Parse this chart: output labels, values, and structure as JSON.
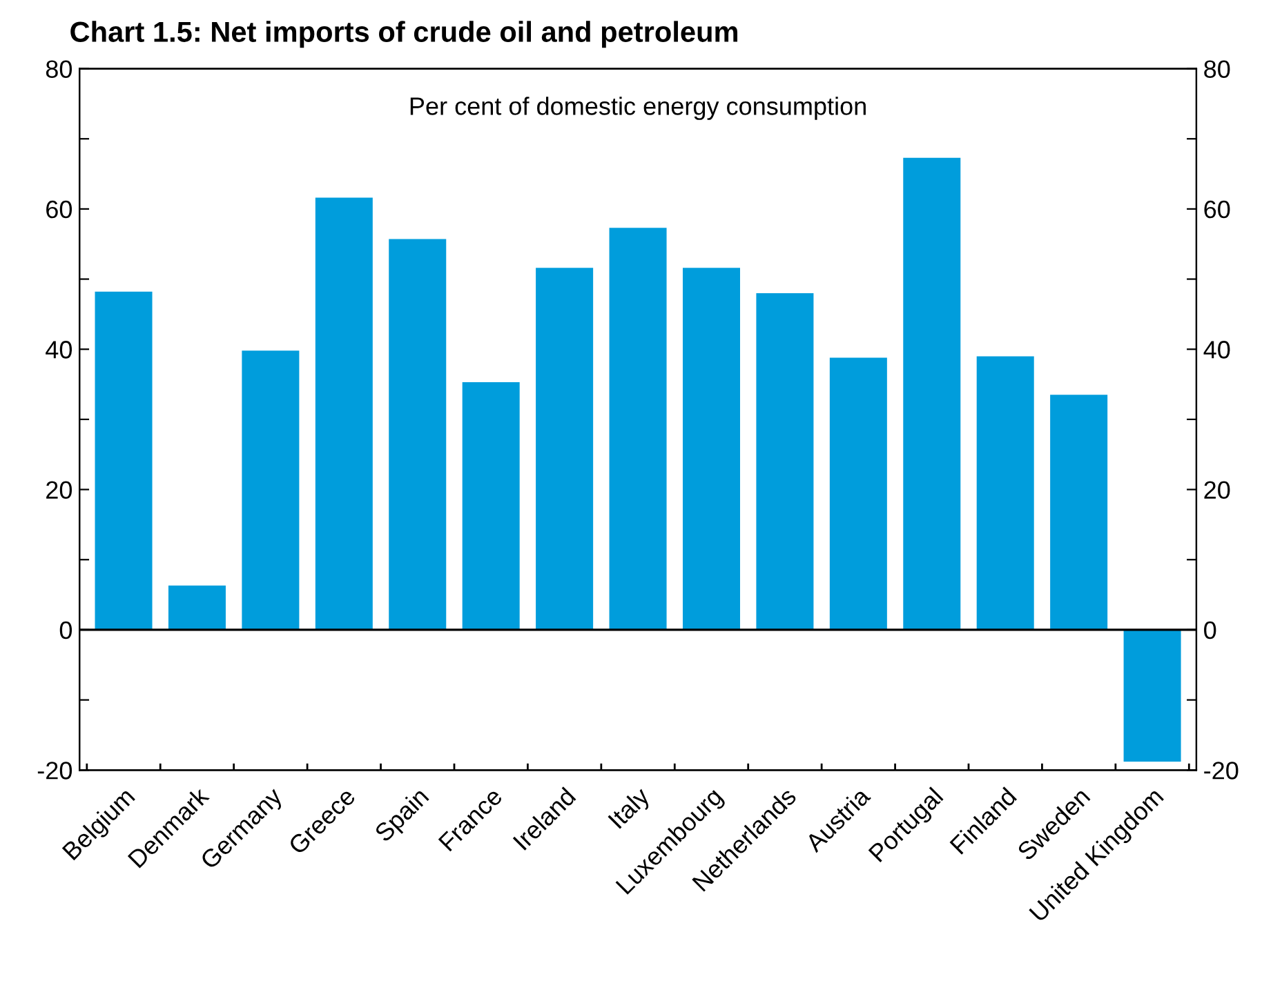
{
  "chart_data": {
    "type": "bar",
    "title": "Chart 1.5: Net imports of crude oil and petroleum",
    "subtitle": "Per cent of domestic energy consumption",
    "categories": [
      "Belgium",
      "Denmark",
      "Germany",
      "Greece",
      "Spain",
      "France",
      "Ireland",
      "Italy",
      "Luxembourg",
      "Netherlands",
      "Austria",
      "Portugal",
      "Finland",
      "Sweden",
      "United Kingdom"
    ],
    "values": [
      48.2,
      6.3,
      39.8,
      61.6,
      55.7,
      35.3,
      51.6,
      57.3,
      51.6,
      48.0,
      38.8,
      67.3,
      39.0,
      33.5,
      -18.8
    ],
    "color": "#009ddc",
    "ylim": [
      -20,
      80
    ],
    "yticks": [
      -20,
      {
        "value": -10,
        "label": null
      },
      0,
      {
        "value": 10,
        "label": null
      },
      20,
      {
        "value": 30,
        "label": null
      },
      40,
      {
        "value": 50,
        "label": null
      },
      60,
      {
        "value": 70,
        "label": null
      },
      80
    ],
    "y2lim": [
      -20,
      80
    ],
    "y2ticks": [
      -20,
      {
        "value": -10,
        "label": null
      },
      0,
      {
        "value": 10,
        "label": null
      },
      20,
      {
        "value": 30,
        "label": null
      },
      40,
      {
        "value": 50,
        "label": null
      },
      60,
      {
        "value": 70,
        "label": null
      },
      80
    ],
    "ref_lines": [
      {
        "axis": "y",
        "value": 0,
        "color": "#000000"
      }
    ]
  }
}
